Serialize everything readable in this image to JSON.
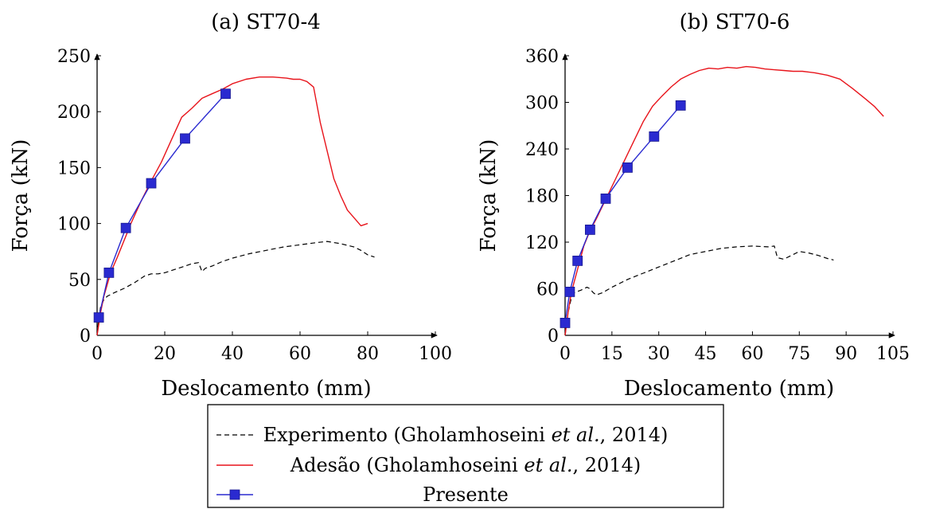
{
  "legend": {
    "items": [
      {
        "series": "experimento",
        "text_before": "Experimento (Gholamhoseini ",
        "text_italic": "et al.",
        "text_after": ", 2014)"
      },
      {
        "series": "adesao",
        "text_before": "Adesão (Gholamhoseini ",
        "text_italic": "et al.",
        "text_after": ", 2014)"
      },
      {
        "series": "presente",
        "text_before": "Presente",
        "text_italic": "",
        "text_after": ""
      }
    ],
    "placement": "bottom-center"
  },
  "chart_data": [
    {
      "type": "line",
      "title": "(a) ST70-4",
      "xlabel": "Deslocamento (mm)",
      "ylabel": "Força (kN)",
      "xlim": [
        0,
        100
      ],
      "ylim": [
        0,
        250
      ],
      "xticks": [
        0,
        20,
        40,
        60,
        80,
        100
      ],
      "yticks": [
        0,
        50,
        100,
        150,
        200,
        250
      ],
      "grid": false,
      "series": [
        {
          "name": "Experimento (Gholamhoseini et al., 2014)",
          "key": "experimento",
          "style": "dashed",
          "color": "#000000",
          "marker": "none",
          "x": [
            0,
            0.5,
            1,
            2,
            3,
            5,
            8,
            11,
            14,
            16,
            18,
            20,
            22,
            25,
            28,
            30,
            31,
            32,
            34,
            37,
            40,
            45,
            50,
            55,
            60,
            65,
            68,
            72,
            76,
            78,
            80,
            82
          ],
          "y": [
            0,
            15,
            25,
            32,
            35,
            38,
            42,
            47,
            53,
            55,
            55,
            56,
            58,
            61,
            64,
            65,
            57,
            60,
            62,
            66,
            69,
            73,
            76,
            79,
            81,
            83,
            84,
            82,
            79,
            76,
            72,
            70
          ]
        },
        {
          "name": "Adesão (Gholamhoseini et al., 2014)",
          "key": "adesao",
          "style": "solid",
          "color": "#e8141b",
          "marker": "none",
          "x": [
            0,
            1,
            2,
            4,
            6,
            8,
            10,
            13,
            16,
            19,
            22,
            25,
            28,
            31,
            34,
            37,
            40,
            44,
            48,
            52,
            56,
            58,
            60,
            62,
            64,
            66,
            68,
            70,
            72,
            74,
            76,
            78,
            80
          ],
          "y": [
            0,
            20,
            35,
            56,
            70,
            85,
            100,
            120,
            138,
            155,
            175,
            195,
            203,
            212,
            216,
            220,
            225,
            229,
            231,
            231,
            230,
            229,
            229,
            227,
            222,
            190,
            165,
            140,
            125,
            112,
            105,
            98,
            100
          ]
        },
        {
          "name": "Presente",
          "key": "presente",
          "style": "solid",
          "color": "#2a2ad0",
          "marker": "square",
          "x": [
            0.5,
            3.5,
            8.5,
            16,
            26,
            38
          ],
          "y": [
            16,
            56,
            96,
            136,
            176,
            216
          ]
        }
      ]
    },
    {
      "type": "line",
      "title": "(b) ST70-6",
      "xlabel": "Deslocamento (mm)",
      "ylabel": "Força (kN)",
      "xlim": [
        0,
        105
      ],
      "ylim": [
        0,
        360
      ],
      "xticks": [
        0,
        15,
        30,
        45,
        60,
        75,
        90,
        105
      ],
      "yticks": [
        0,
        60,
        120,
        180,
        240,
        300,
        360
      ],
      "grid": false,
      "series": [
        {
          "name": "Experimento (Gholamhoseini et al., 2014)",
          "key": "experimento",
          "style": "dashed",
          "color": "#000000",
          "marker": "none",
          "x": [
            0,
            1,
            2,
            3,
            5,
            7,
            8,
            9,
            10,
            12,
            15,
            20,
            25,
            30,
            35,
            40,
            45,
            50,
            55,
            60,
            65,
            67,
            68,
            70,
            72,
            75,
            78,
            81,
            84,
            86
          ],
          "y": [
            0,
            30,
            48,
            55,
            58,
            62,
            60,
            55,
            52,
            55,
            62,
            72,
            80,
            88,
            96,
            104,
            108,
            112,
            114,
            115,
            114,
            115,
            100,
            98,
            102,
            108,
            106,
            103,
            99,
            97
          ]
        },
        {
          "name": "Adesão (Gholamhoseini et al., 2014)",
          "key": "adesao",
          "style": "solid",
          "color": "#e8141b",
          "marker": "none",
          "x": [
            0,
            1,
            2,
            4,
            6,
            8,
            10,
            13,
            16,
            19,
            22,
            25,
            28,
            31,
            34,
            37,
            40,
            43,
            46,
            49,
            52,
            55,
            58,
            61,
            64,
            67,
            70,
            73,
            76,
            80,
            84,
            88,
            92,
            96,
            99,
            102
          ],
          "y": [
            0,
            30,
            55,
            85,
            115,
            135,
            150,
            175,
            200,
            225,
            250,
            275,
            295,
            308,
            320,
            330,
            336,
            341,
            344,
            343,
            345,
            344,
            346,
            345,
            343,
            342,
            341,
            340,
            340,
            338,
            335,
            330,
            318,
            305,
            295,
            282
          ]
        },
        {
          "name": "Presente",
          "key": "presente",
          "style": "solid",
          "color": "#2a2ad0",
          "marker": "square",
          "x": [
            0,
            1.5,
            4,
            8,
            13,
            20,
            28.5,
            37
          ],
          "y": [
            16,
            56,
            96,
            136,
            176,
            216,
            256,
            296
          ]
        }
      ]
    }
  ]
}
